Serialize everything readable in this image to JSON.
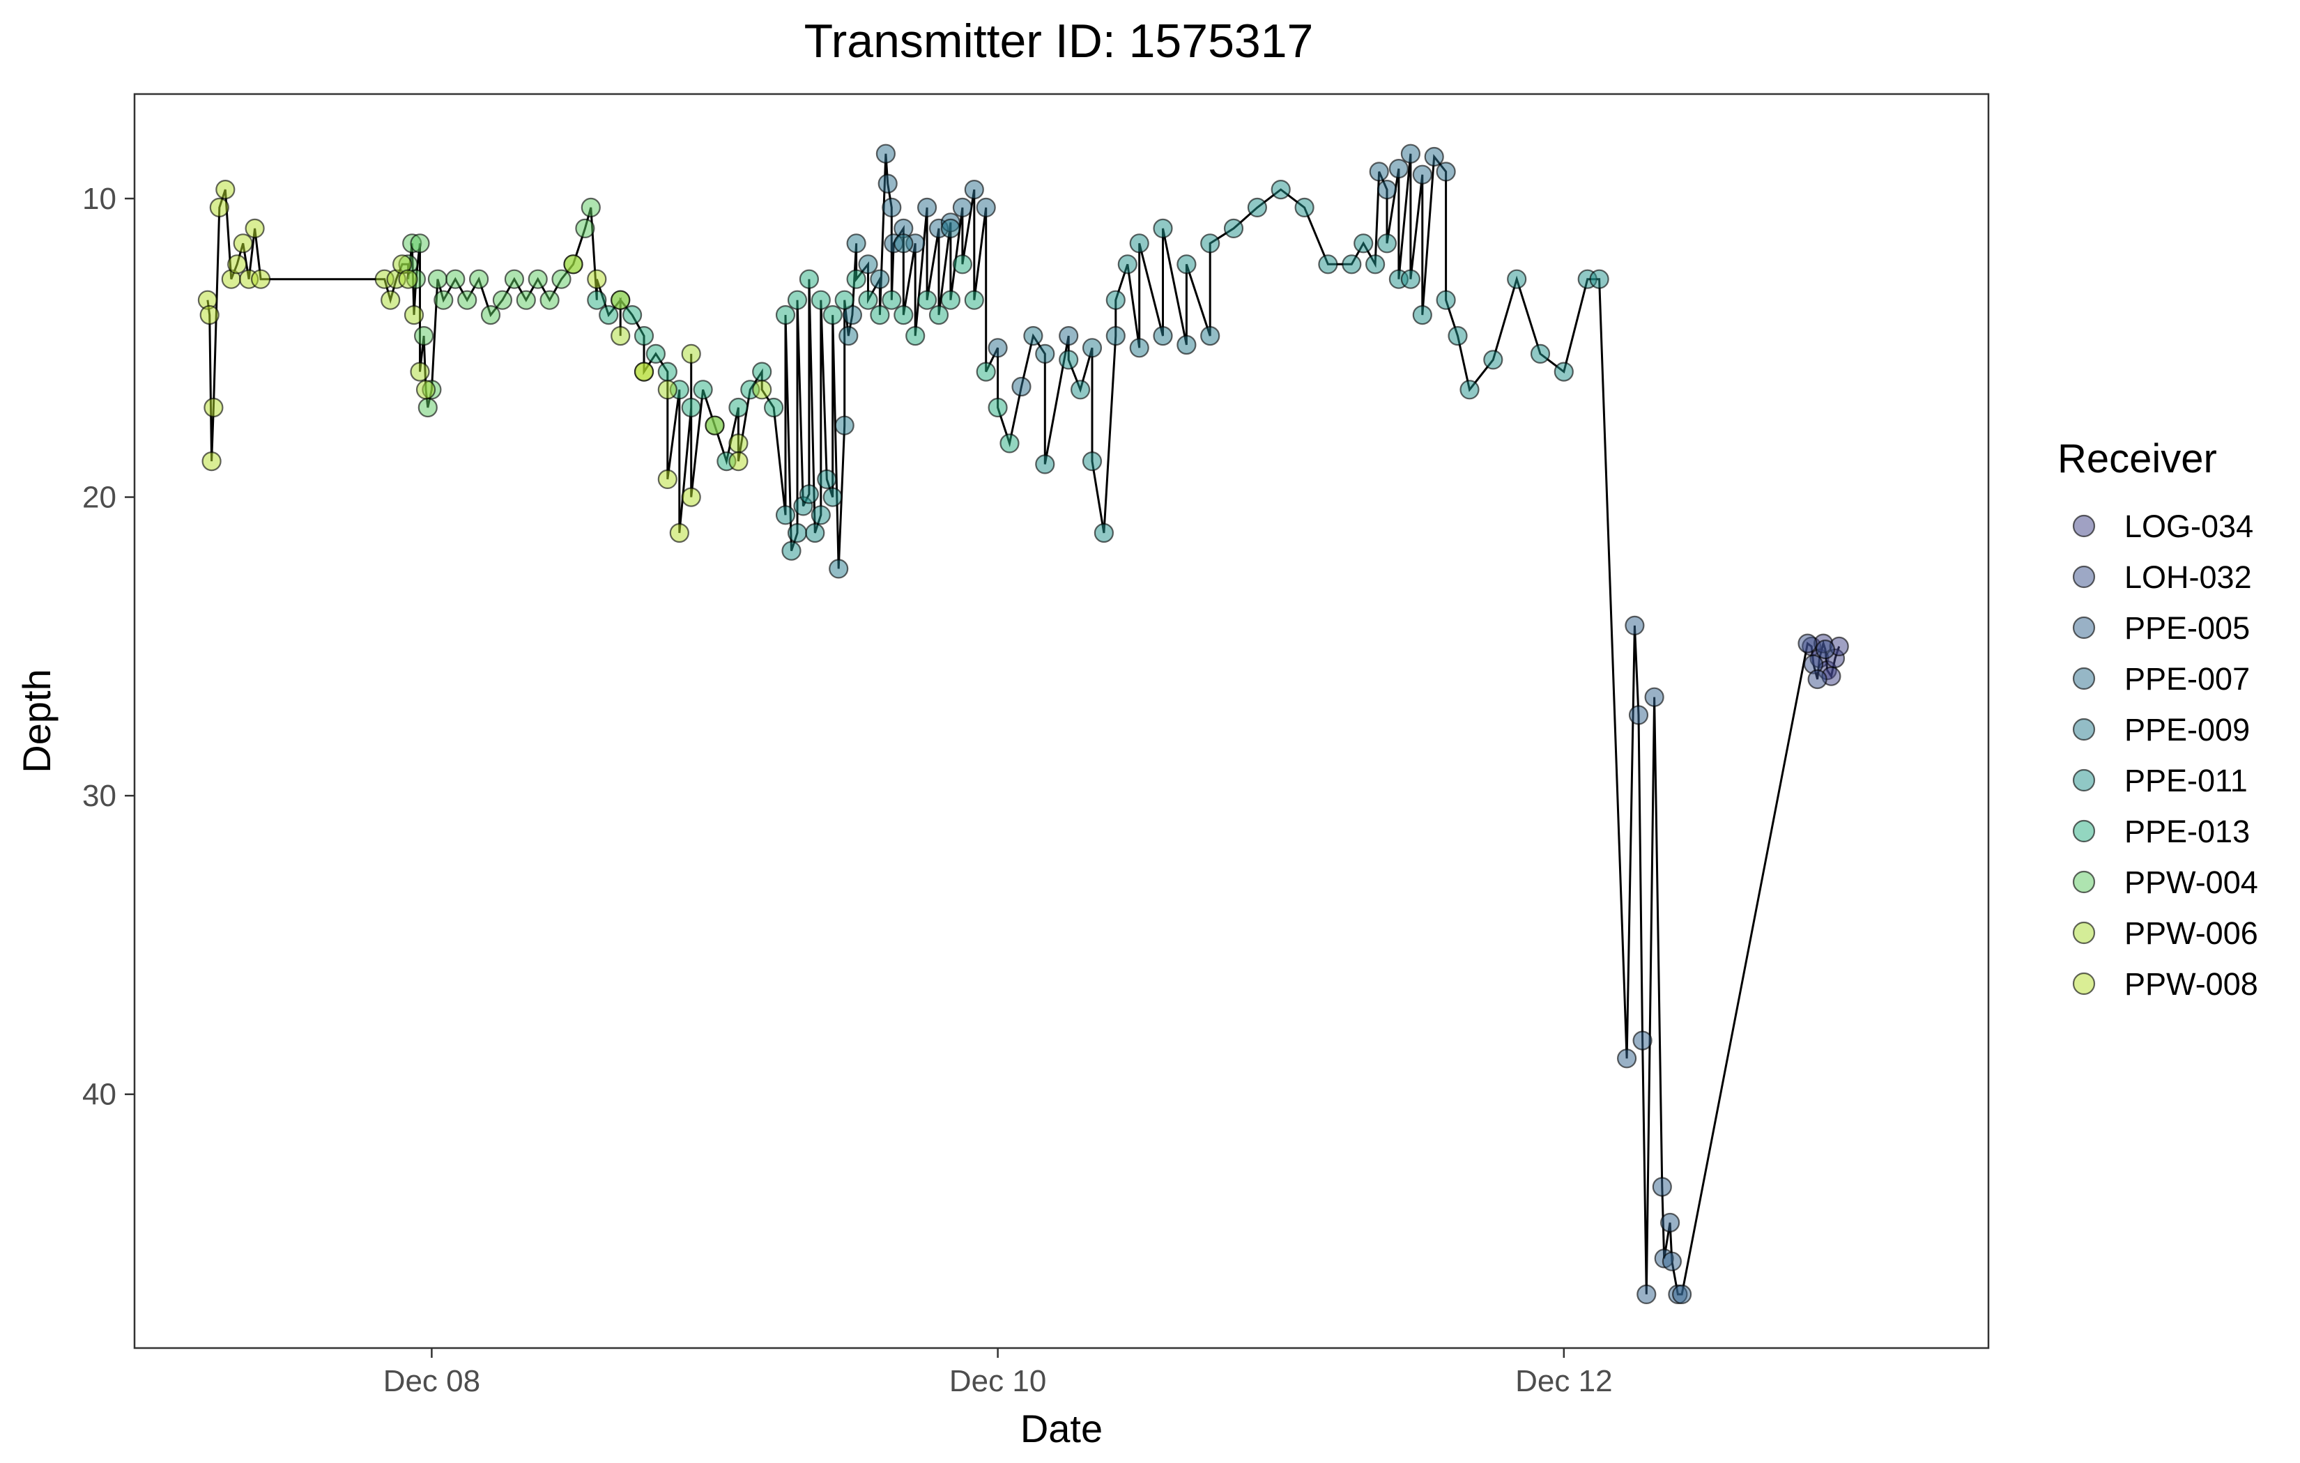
{
  "chart_data": {
    "type": "scatter",
    "title": "Transmitter ID: 1575317",
    "xlabel": "Date",
    "ylabel": "Depth",
    "y_reversed": true,
    "x_range": [
      "2023-12-06T22:48",
      "2023-12-13T12:00"
    ],
    "ylim": [
      6.5,
      48.5
    ],
    "x_ticks": [
      {
        "value": "2023-12-08T00:00",
        "label": "Dec 08"
      },
      {
        "value": "2023-12-10T00:00",
        "label": "Dec 10"
      },
      {
        "value": "2023-12-12T00:00",
        "label": "Dec 12"
      }
    ],
    "y_ticks": [
      10,
      20,
      30,
      40
    ],
    "grid": false,
    "legend_title": "Receiver",
    "legend_position": "right",
    "series": [
      {
        "name": "LOG-034",
        "color": "#414487",
        "points": [
          [
            "2023-12-12T21:00",
            25
          ],
          [
            "2023-12-12T21:40",
            25.4
          ],
          [
            "2023-12-12T22:00",
            24.9
          ],
          [
            "2023-12-12T22:20",
            25.8
          ],
          [
            "2023-12-12T22:40",
            26
          ],
          [
            "2023-12-12T23:00",
            25.4
          ],
          [
            "2023-12-12T23:20",
            25
          ]
        ]
      },
      {
        "name": "LOH-032",
        "color": "#3b528b",
        "points": [
          [
            "2023-12-12T20:40",
            24.9
          ],
          [
            "2023-12-12T21:10",
            25.6
          ],
          [
            "2023-12-12T21:30",
            26.1
          ],
          [
            "2023-12-12T22:10",
            25.1
          ]
        ]
      },
      {
        "name": "PPE-005",
        "color": "#33638d",
        "points": [
          [
            "2023-12-12T05:20",
            38.8
          ],
          [
            "2023-12-12T06:00",
            24.3
          ],
          [
            "2023-12-12T06:20",
            27.3
          ],
          [
            "2023-12-12T06:40",
            38.2
          ],
          [
            "2023-12-12T07:00",
            46.7
          ],
          [
            "2023-12-12T07:40",
            26.7
          ],
          [
            "2023-12-12T08:20",
            43.1
          ],
          [
            "2023-12-12T08:30",
            45.5
          ],
          [
            "2023-12-12T09:00",
            44.3
          ],
          [
            "2023-12-12T09:10",
            45.6
          ],
          [
            "2023-12-12T09:40",
            46.7
          ],
          [
            "2023-12-12T10:00",
            46.7
          ]
        ]
      },
      {
        "name": "PPE-007",
        "color": "#2d708e",
        "points": [
          [
            "2023-12-09T14:30",
            8.5
          ],
          [
            "2023-12-09T14:40",
            9.5
          ],
          [
            "2023-12-09T15:00",
            10.3
          ],
          [
            "2023-12-09T15:10",
            11.5
          ],
          [
            "2023-12-09T16:00",
            11
          ],
          [
            "2023-12-09T17:00",
            11.5
          ],
          [
            "2023-12-09T18:00",
            10.3
          ],
          [
            "2023-12-09T19:00",
            11
          ],
          [
            "2023-12-09T20:00",
            10.8
          ],
          [
            "2023-12-09T21:00",
            10.3
          ],
          [
            "2023-12-09T22:00",
            9.7
          ],
          [
            "2023-12-09T23:00",
            10.3
          ],
          [
            "2023-12-10T00:00",
            15
          ],
          [
            "2023-12-10T02:00",
            16.3
          ],
          [
            "2023-12-10T06:00",
            14.6
          ],
          [
            "2023-12-11T08:20",
            9.1
          ],
          [
            "2023-12-11T09:00",
            9.7
          ],
          [
            "2023-12-11T10:00",
            9
          ],
          [
            "2023-12-11T11:00",
            8.5
          ],
          [
            "2023-12-11T12:00",
            9.2
          ],
          [
            "2023-12-11T13:00",
            8.6
          ],
          [
            "2023-12-11T14:00",
            9.1
          ]
        ]
      },
      {
        "name": "PPE-009",
        "color": "#287c8e",
        "points": [
          [
            "2023-12-09T10:30",
            22.4
          ],
          [
            "2023-12-09T11:00",
            17.6
          ],
          [
            "2023-12-09T11:20",
            14.6
          ],
          [
            "2023-12-09T11:40",
            13.9
          ],
          [
            "2023-12-09T12:00",
            11.5
          ],
          [
            "2023-12-09T13:00",
            12.2
          ],
          [
            "2023-12-09T14:00",
            12.7
          ],
          [
            "2023-12-09T16:00",
            11.5
          ],
          [
            "2023-12-09T20:00",
            11
          ],
          [
            "2023-12-10T03:00",
            14.6
          ],
          [
            "2023-12-10T04:00",
            15.2
          ],
          [
            "2023-12-10T08:00",
            15
          ],
          [
            "2023-12-10T10:00",
            14.6
          ],
          [
            "2023-12-10T12:00",
            15
          ],
          [
            "2023-12-10T14:00",
            14.6
          ],
          [
            "2023-12-10T16:00",
            14.9
          ],
          [
            "2023-12-10T18:00",
            14.6
          ]
        ]
      },
      {
        "name": "PPE-011",
        "color": "#21918c",
        "points": [
          [
            "2023-12-09T06:00",
            20.6
          ],
          [
            "2023-12-09T06:30",
            21.8
          ],
          [
            "2023-12-09T07:00",
            21.2
          ],
          [
            "2023-12-09T07:30",
            20.3
          ],
          [
            "2023-12-09T08:00",
            19.9
          ],
          [
            "2023-12-09T08:30",
            21.2
          ],
          [
            "2023-12-09T09:00",
            20.6
          ],
          [
            "2023-12-09T09:30",
            19.4
          ],
          [
            "2023-12-09T10:00",
            20
          ],
          [
            "2023-12-10T04:00",
            18.9
          ],
          [
            "2023-12-10T06:00",
            15.4
          ],
          [
            "2023-12-10T07:00",
            16.4
          ],
          [
            "2023-12-10T08:00",
            18.8
          ],
          [
            "2023-12-10T09:00",
            21.2
          ],
          [
            "2023-12-10T10:00",
            13.4
          ],
          [
            "2023-12-10T11:00",
            12.2
          ],
          [
            "2023-12-10T12:00",
            11.5
          ],
          [
            "2023-12-10T14:00",
            11
          ],
          [
            "2023-12-10T16:00",
            12.2
          ],
          [
            "2023-12-10T18:00",
            11.5
          ],
          [
            "2023-12-10T20:00",
            11
          ],
          [
            "2023-12-10T22:00",
            10.3
          ],
          [
            "2023-12-11T00:00",
            9.7
          ],
          [
            "2023-12-11T02:00",
            10.3
          ],
          [
            "2023-12-11T04:00",
            12.2
          ],
          [
            "2023-12-11T06:00",
            12.2
          ],
          [
            "2023-12-11T07:00",
            11.5
          ],
          [
            "2023-12-11T08:00",
            12.2
          ],
          [
            "2023-12-11T09:00",
            11.5
          ],
          [
            "2023-12-11T10:00",
            12.7
          ],
          [
            "2023-12-11T11:00",
            12.7
          ],
          [
            "2023-12-11T12:00",
            13.9
          ],
          [
            "2023-12-11T14:00",
            13.4
          ],
          [
            "2023-12-11T15:00",
            14.6
          ],
          [
            "2023-12-11T16:00",
            16.4
          ],
          [
            "2023-12-11T18:00",
            15.4
          ],
          [
            "2023-12-11T20:00",
            12.7
          ],
          [
            "2023-12-11T22:00",
            15.2
          ],
          [
            "2023-12-12T00:00",
            15.8
          ],
          [
            "2023-12-12T02:00",
            12.7
          ],
          [
            "2023-12-12T03:00",
            12.7
          ]
        ]
      },
      {
        "name": "PPE-013",
        "color": "#27ad81",
        "points": [
          [
            "2023-12-08T14:00",
            13.4
          ],
          [
            "2023-12-08T15:00",
            13.9
          ],
          [
            "2023-12-08T16:00",
            13.4
          ],
          [
            "2023-12-08T17:00",
            13.9
          ],
          [
            "2023-12-08T18:00",
            14.6
          ],
          [
            "2023-12-08T19:00",
            15.2
          ],
          [
            "2023-12-08T20:00",
            15.8
          ],
          [
            "2023-12-08T21:00",
            16.4
          ],
          [
            "2023-12-08T22:00",
            17
          ],
          [
            "2023-12-08T23:00",
            16.4
          ],
          [
            "2023-12-09T00:00",
            17.6
          ],
          [
            "2023-12-09T01:00",
            18.8
          ],
          [
            "2023-12-09T02:00",
            17
          ],
          [
            "2023-12-09T03:00",
            16.4
          ],
          [
            "2023-12-09T04:00",
            15.8
          ],
          [
            "2023-12-09T05:00",
            17
          ],
          [
            "2023-12-09T06:00",
            13.9
          ],
          [
            "2023-12-09T07:00",
            13.4
          ],
          [
            "2023-12-09T08:00",
            12.7
          ],
          [
            "2023-12-09T09:00",
            13.4
          ],
          [
            "2023-12-09T10:00",
            13.9
          ],
          [
            "2023-12-09T11:00",
            13.4
          ],
          [
            "2023-12-09T12:00",
            12.7
          ],
          [
            "2023-12-09T13:00",
            13.4
          ],
          [
            "2023-12-09T14:00",
            13.9
          ],
          [
            "2023-12-09T15:00",
            13.4
          ],
          [
            "2023-12-09T16:00",
            13.9
          ],
          [
            "2023-12-09T17:00",
            14.6
          ],
          [
            "2023-12-09T18:00",
            13.4
          ],
          [
            "2023-12-09T19:00",
            13.9
          ],
          [
            "2023-12-09T20:00",
            13.4
          ],
          [
            "2023-12-09T21:00",
            12.2
          ],
          [
            "2023-12-09T22:00",
            13.4
          ],
          [
            "2023-12-09T23:00",
            15.8
          ],
          [
            "2023-12-10T00:00",
            17
          ],
          [
            "2023-12-10T01:00",
            18.2
          ]
        ]
      },
      {
        "name": "PPW-004",
        "color": "#5ec962",
        "points": [
          [
            "2023-12-07T22:00",
            12.2
          ],
          [
            "2023-12-07T22:20",
            11.5
          ],
          [
            "2023-12-07T22:40",
            12.7
          ],
          [
            "2023-12-07T23:00",
            11.5
          ],
          [
            "2023-12-07T23:20",
            14.6
          ],
          [
            "2023-12-07T23:40",
            17
          ],
          [
            "2023-12-08T00:00",
            16.4
          ],
          [
            "2023-12-08T00:30",
            12.7
          ],
          [
            "2023-12-08T01:00",
            13.4
          ],
          [
            "2023-12-08T02:00",
            12.7
          ],
          [
            "2023-12-08T03:00",
            13.4
          ],
          [
            "2023-12-08T04:00",
            12.7
          ],
          [
            "2023-12-08T05:00",
            13.9
          ],
          [
            "2023-12-08T06:00",
            13.4
          ],
          [
            "2023-12-08T07:00",
            12.7
          ],
          [
            "2023-12-08T08:00",
            13.4
          ],
          [
            "2023-12-08T09:00",
            12.7
          ],
          [
            "2023-12-08T10:00",
            13.4
          ],
          [
            "2023-12-08T11:00",
            12.7
          ],
          [
            "2023-12-08T12:00",
            12.2
          ],
          [
            "2023-12-08T13:00",
            11
          ],
          [
            "2023-12-08T13:30",
            10.3
          ]
        ]
      },
      {
        "name": "PPW-006",
        "color": "#aadc32",
        "points": [
          [
            "2023-12-07T20:00",
            12.7
          ],
          [
            "2023-12-07T20:30",
            13.4
          ],
          [
            "2023-12-07T21:00",
            12.7
          ],
          [
            "2023-12-07T21:30",
            12.2
          ],
          [
            "2023-12-07T22:00",
            12.7
          ],
          [
            "2023-12-07T22:30",
            13.9
          ],
          [
            "2023-12-07T23:00",
            15.8
          ],
          [
            "2023-12-07T23:30",
            16.4
          ],
          [
            "2023-12-08T16:00",
            14.6
          ],
          [
            "2023-12-08T18:00",
            15.8
          ],
          [
            "2023-12-08T20:00",
            16.4
          ],
          [
            "2023-12-08T22:00",
            15.2
          ],
          [
            "2023-12-09T00:00",
            17.6
          ],
          [
            "2023-12-09T02:00",
            18.2
          ],
          [
            "2023-12-09T04:00",
            16.4
          ]
        ]
      },
      {
        "name": "PPW-008",
        "color": "#b5de2b",
        "points": [
          [
            "2023-12-07T05:00",
            13.4
          ],
          [
            "2023-12-07T05:10",
            13.9
          ],
          [
            "2023-12-07T05:20",
            18.8
          ],
          [
            "2023-12-07T05:30",
            17
          ],
          [
            "2023-12-07T06:00",
            10.3
          ],
          [
            "2023-12-07T06:30",
            9.7
          ],
          [
            "2023-12-07T07:00",
            12.7
          ],
          [
            "2023-12-07T07:30",
            12.2
          ],
          [
            "2023-12-07T08:00",
            11.5
          ],
          [
            "2023-12-07T08:30",
            12.7
          ],
          [
            "2023-12-07T09:00",
            11
          ],
          [
            "2023-12-07T09:30",
            12.7
          ],
          [
            "2023-12-08T12:00",
            12.2
          ],
          [
            "2023-12-08T14:00",
            12.7
          ],
          [
            "2023-12-08T16:00",
            13.4
          ],
          [
            "2023-12-08T18:00",
            15.8
          ],
          [
            "2023-12-08T20:00",
            19.4
          ],
          [
            "2023-12-08T21:00",
            21.2
          ],
          [
            "2023-12-08T22:00",
            20
          ],
          [
            "2023-12-09T02:00",
            18.8
          ]
        ]
      }
    ]
  }
}
